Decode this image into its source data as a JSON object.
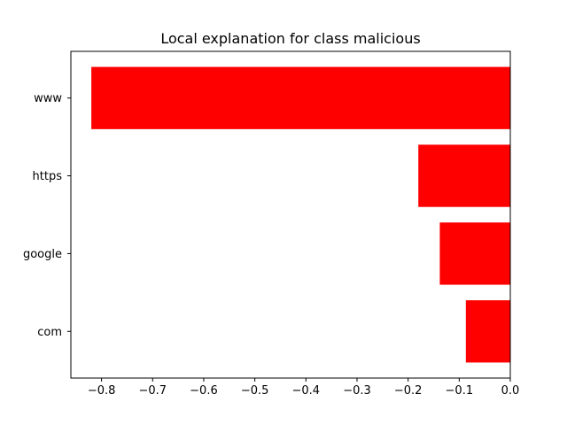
{
  "chart_data": {
    "type": "bar",
    "orientation": "horizontal",
    "title": "Local explanation for class malicious",
    "xlabel": "",
    "ylabel": "",
    "categories": [
      "www",
      "https",
      "google",
      "com"
    ],
    "values": [
      -0.82,
      -0.18,
      -0.138,
      -0.087
    ],
    "xlim": [
      -0.86,
      0.0
    ],
    "x_ticks": [
      -0.8,
      -0.7,
      -0.6,
      -0.5,
      -0.4,
      -0.3,
      -0.2,
      -0.1,
      0.0
    ],
    "x_tick_labels": [
      "−0.8",
      "−0.7",
      "−0.6",
      "−0.5",
      "−0.4",
      "−0.3",
      "−0.2",
      "−0.1",
      "0.0"
    ],
    "bar_color": "#ff0000",
    "grid": false,
    "legend": "none"
  }
}
